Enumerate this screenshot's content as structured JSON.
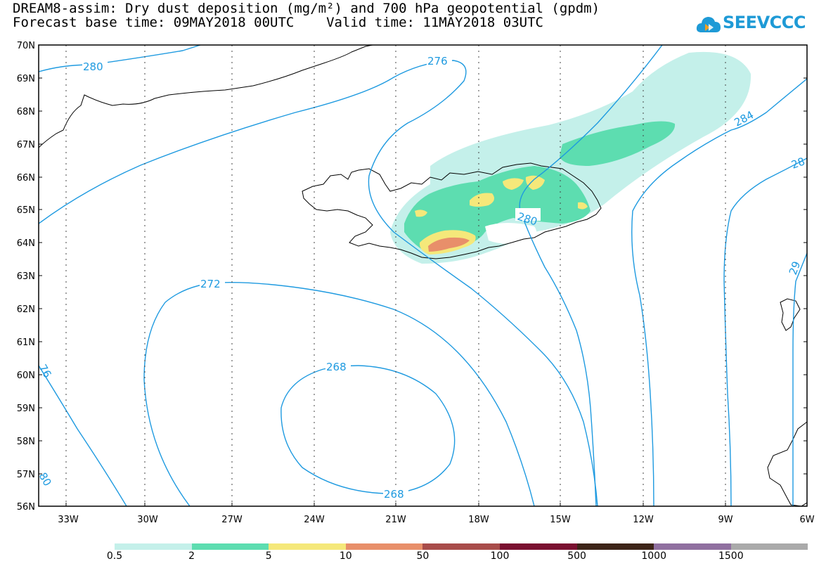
{
  "title": {
    "line1": "DREAM8-assim: Dry dust deposition (mg/m²) and 700 hPa geopotential (gpdm)",
    "line2": "Forecast base time: 09MAY2018 00UTC    Valid time: 11MAY2018 03UTC"
  },
  "logo": {
    "text": "SEEVCCC",
    "icon": "cloud-icon"
  },
  "map": {
    "lat_labels": [
      "70N",
      "69N",
      "68N",
      "67N",
      "66N",
      "65N",
      "64N",
      "63N",
      "62N",
      "61N",
      "60N",
      "59N",
      "58N",
      "57N",
      "56N"
    ],
    "lon_labels": [
      "33W",
      "30W",
      "27W",
      "24W",
      "21W",
      "18W",
      "15W",
      "12W",
      "9W",
      "6W"
    ],
    "contour_labels": [
      "280",
      "276",
      "284",
      "28",
      "272",
      "268",
      "268",
      "280",
      "76",
      "80",
      "29"
    ],
    "features": [
      "Greenland coast",
      "Iceland",
      "Faroe Islands",
      "Scotland"
    ]
  },
  "colorbar": {
    "colors": [
      "#c4f0ea",
      "#5dddb0",
      "#f5e87a",
      "#e88f6a",
      "#a84c4a",
      "#7a1030",
      "#3d2418",
      "#9070a0",
      "#aaaaaa"
    ],
    "labels": [
      "0.5",
      "2",
      "5",
      "10",
      "50",
      "100",
      "500",
      "1000",
      "1500"
    ]
  },
  "colors": {
    "contour": "#1e9ae0",
    "frame": "#000000"
  }
}
